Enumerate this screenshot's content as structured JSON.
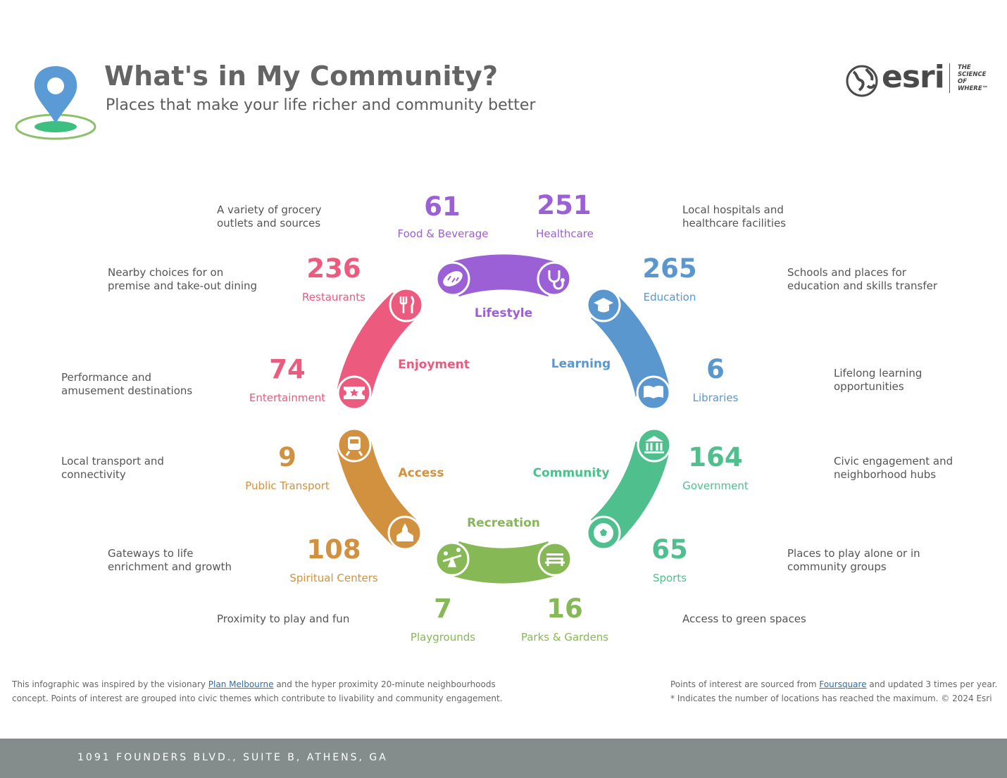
{
  "header": {
    "title": "What's in My Community?",
    "subtitle": "Places that make your life richer and community better"
  },
  "brand": {
    "name": "esri",
    "tagline": [
      "THE",
      "SCIENCE",
      "OF",
      "WHERE™"
    ]
  },
  "colors": {
    "lifestyle": "#9b5fd6",
    "learning": "#5b97cf",
    "community": "#4fc08d",
    "recreation": "#86b956",
    "access": "#d2913f",
    "enjoyment": "#ec5a7d"
  },
  "themes": {
    "lifestyle": "Lifestyle",
    "learning": "Learning",
    "community": "Community",
    "recreation": "Recreation",
    "access": "Access",
    "enjoyment": "Enjoyment"
  },
  "categories": {
    "food": {
      "count": "61",
      "label": "Food & Beverage",
      "desc": [
        "A variety of grocery",
        "outlets and sources"
      ],
      "icon": "bread-icon"
    },
    "healthcare": {
      "count": "251",
      "label": "Healthcare",
      "desc": [
        "Local hospitals and",
        "healthcare facilities"
      ],
      "icon": "stethoscope-icon"
    },
    "education": {
      "count": "265",
      "label": "Education",
      "desc": [
        "Schools and places for",
        "education and skills transfer"
      ],
      "icon": "graduation-cap-icon"
    },
    "libraries": {
      "count": "6",
      "label": "Libraries",
      "desc": [
        "Lifelong learning",
        "opportunities"
      ],
      "icon": "book-icon"
    },
    "government": {
      "count": "164",
      "label": "Government",
      "desc": [
        "Civic engagement and",
        "neighborhood hubs"
      ],
      "icon": "government-building-icon"
    },
    "sports": {
      "count": "65",
      "label": "Sports",
      "desc": [
        "Places to play alone or in",
        "community groups"
      ],
      "icon": "soccer-ball-icon"
    },
    "parks": {
      "count": "16",
      "label": "Parks & Gardens",
      "desc": [
        "Access to green spaces"
      ],
      "icon": "park-bench-icon"
    },
    "playgrounds": {
      "count": "7",
      "label": "Playgrounds",
      "desc": [
        "Proximity to play and fun"
      ],
      "icon": "seesaw-icon"
    },
    "spiritual": {
      "count": "108",
      "label": "Spiritual Centers",
      "desc": [
        "Gateways to life",
        "enrichment and growth"
      ],
      "icon": "temple-icon"
    },
    "transport": {
      "count": "9",
      "label": "Public Transport",
      "desc": [
        "Local transport and",
        "connectivity"
      ],
      "icon": "train-icon"
    },
    "entertainment": {
      "count": "74",
      "label": "Entertainment",
      "desc": [
        "Performance and",
        "amusement destinations"
      ],
      "icon": "ticket-icon"
    },
    "restaurants": {
      "count": "236",
      "label": "Restaurants",
      "desc": [
        "Nearby choices for on",
        "premise and take-out dining"
      ],
      "icon": "fork-knife-icon"
    }
  },
  "notes": {
    "left_a": "This infographic was inspired by the visionary ",
    "left_link": "Plan Melbourne",
    "left_b": " and the hyper proximity 20-minute neighbourhoods",
    "left_c": "concept. Points of interest are grouped into civic themes which contribute to livability and community engagement.",
    "right_a": "Points of interest are sourced from ",
    "right_link": "Foursquare",
    "right_b": " and updated 3 times per year.",
    "right_c": "* Indicates the number of locations has reached the maximum. © 2024 Esri"
  },
  "footer": {
    "address": "1091 FOUNDERS BLVD., SUITE B, ATHENS, GA"
  }
}
